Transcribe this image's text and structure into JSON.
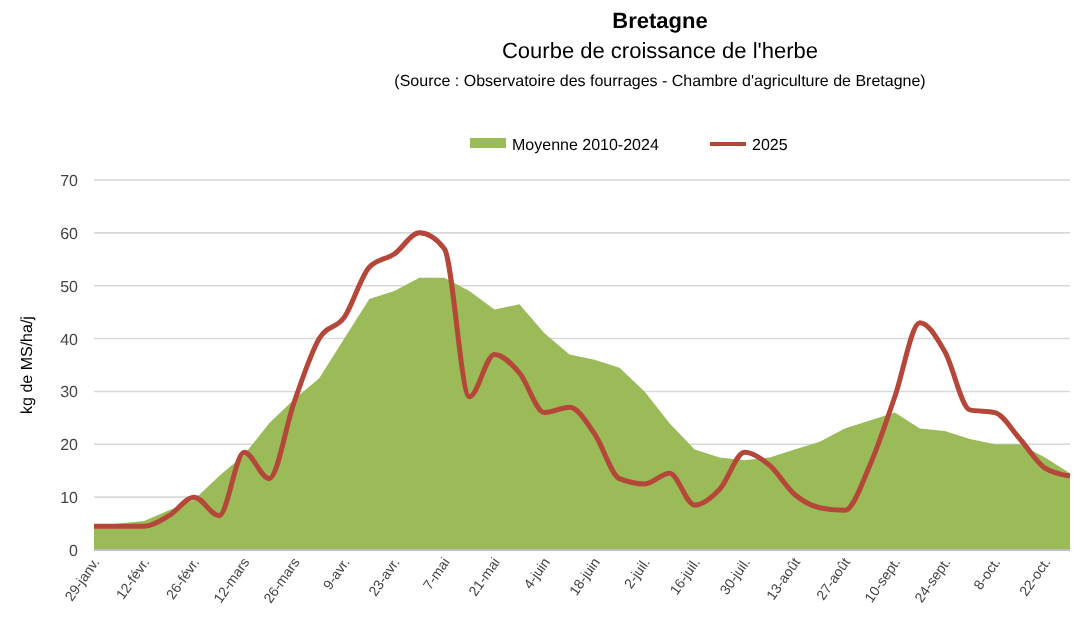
{
  "chart_data": {
    "type": "area",
    "title": "Bretagne",
    "subtitle": "Courbe de croissance de l'herbe",
    "annotations": [
      "(Source :  Observatoire des fourrages - Chambre d'agriculture de Bretagne)"
    ],
    "ylabel": "kg de MS/ha/j",
    "categories": [
      "29-janv.",
      null,
      "12-févr.",
      null,
      "26-févr.",
      null,
      "12-mars",
      null,
      "26-mars",
      null,
      "9-avr.",
      null,
      "23-avr.",
      null,
      "7-mai",
      null,
      "21-mai",
      null,
      "4-juin",
      null,
      "18-juin",
      null,
      "2-juil.",
      null,
      "16-juil.",
      null,
      "30-juil.",
      null,
      "13-août",
      null,
      "27-août",
      null,
      "10-sept.",
      null,
      "24-sept.",
      null,
      "8-oct.",
      null,
      "22-oct.",
      null
    ],
    "series": [
      {
        "name": "Moyenne 2010-2024",
        "color": "#9bbb59",
        "values": [
          4.5,
          5,
          5.5,
          7.5,
          9.5,
          14,
          18,
          24,
          28.5,
          32.5,
          40,
          47.5,
          49,
          51.5,
          51.5,
          49,
          45.5,
          46.5,
          41,
          37,
          36,
          34.5,
          30,
          24,
          19,
          17.5,
          17,
          17.5,
          19,
          20.5,
          23,
          24.5,
          26,
          23,
          22.5,
          21,
          20,
          20,
          17.5,
          14.5
        ]
      },
      {
        "name": "2025",
        "type": "line",
        "color": "#b5473a",
        "values": [
          4.5,
          4.5,
          4.5,
          6.5,
          10,
          6.5,
          18.5,
          13.5,
          28,
          40,
          44,
          53.5,
          56,
          60,
          57,
          29,
          37,
          33.5,
          26,
          27,
          22,
          13.5,
          12.5,
          14.5,
          8.5,
          11.5,
          18.5,
          16,
          10.5,
          8,
          7.5,
          16,
          29,
          43,
          37.5,
          26.5,
          26,
          21,
          15.5,
          14
        ]
      }
    ],
    "ylim": [
      0,
      70
    ],
    "yticks": [
      0,
      10,
      20,
      30,
      40,
      50,
      60,
      70
    ],
    "grid": "y",
    "legend": "top",
    "line_style": "solid"
  }
}
